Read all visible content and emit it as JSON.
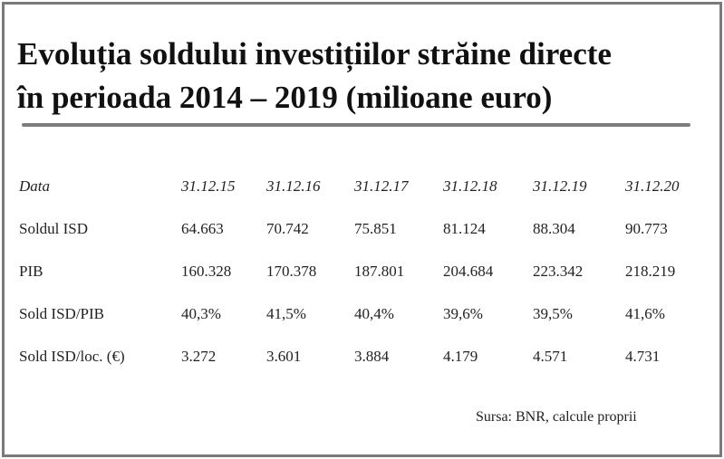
{
  "title": {
    "line1": "Evoluția soldului investițiilor străine directe",
    "line2": "în perioada 2014 – 2019 (milioane euro)"
  },
  "table": {
    "header": [
      "Data",
      "31.12.15",
      "31.12.16",
      "31.12.17",
      "31.12.18",
      "31.12.19",
      "31.12.20"
    ],
    "rows": [
      [
        "Soldul ISD",
        "64.663",
        "70.742",
        "75.851",
        "81.124",
        "88.304",
        "90.773"
      ],
      [
        "PIB",
        "160.328",
        "170.378",
        "187.801",
        "204.684",
        "223.342",
        "218.219"
      ],
      [
        "Sold ISD/PIB",
        "40,3%",
        "41,5%",
        "40,4%",
        "39,6%",
        "39,5%",
        "41,6%"
      ],
      [
        "Sold ISD/loc. (€)",
        "3.272",
        "3.601",
        "3.884",
        "4.179",
        "4.571",
        "4.731"
      ]
    ]
  },
  "source": "Sursa: BNR, calcule proprii",
  "colors": {
    "frame_border": "#7a7a7a",
    "rule": "#7d7d7d"
  }
}
